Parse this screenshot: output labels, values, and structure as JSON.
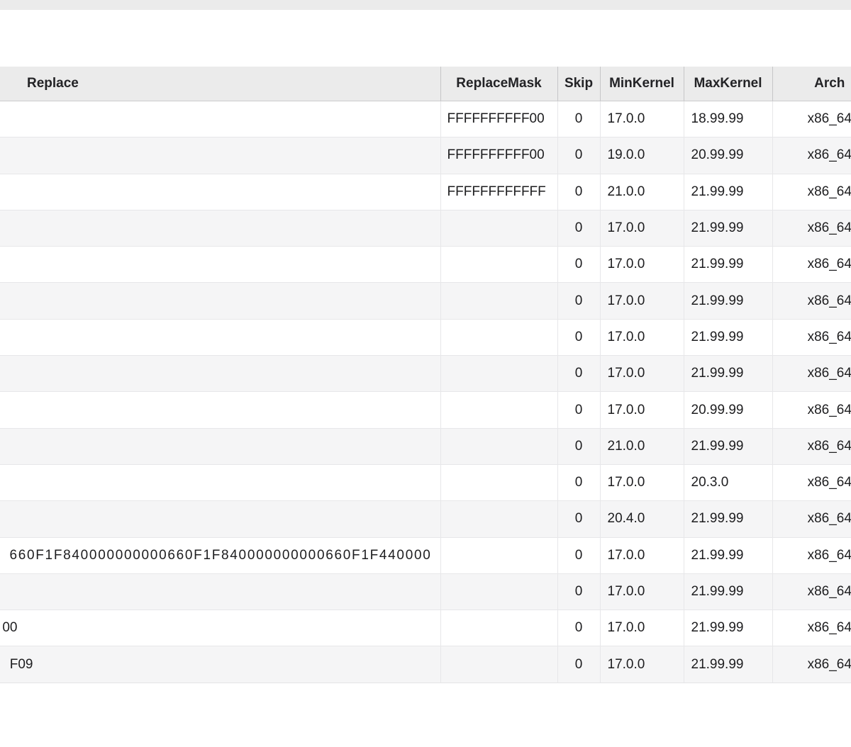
{
  "top_band": {
    "present": true
  },
  "table": {
    "columns": [
      {
        "label": "Replace"
      },
      {
        "label": "ReplaceMask"
      },
      {
        "label": "Skip"
      },
      {
        "label": "MinKernel"
      },
      {
        "label": "MaxKernel"
      },
      {
        "label": "Arch"
      }
    ],
    "rows": [
      {
        "replace": "",
        "replace_mask": "FFFFFFFFFF00",
        "skip": "0",
        "min_kernel": "17.0.0",
        "max_kernel": "18.99.99",
        "arch": "x86_64"
      },
      {
        "replace": "",
        "replace_mask": "FFFFFFFFFF00",
        "skip": "0",
        "min_kernel": "19.0.0",
        "max_kernel": "20.99.99",
        "arch": "x86_64"
      },
      {
        "replace": "",
        "replace_mask": "FFFFFFFFFFFF",
        "skip": "0",
        "min_kernel": "21.0.0",
        "max_kernel": "21.99.99",
        "arch": "x86_64"
      },
      {
        "replace": "",
        "replace_mask": "",
        "skip": "0",
        "min_kernel": "17.0.0",
        "max_kernel": "21.99.99",
        "arch": "x86_64"
      },
      {
        "replace": "",
        "replace_mask": "",
        "skip": "0",
        "min_kernel": "17.0.0",
        "max_kernel": "21.99.99",
        "arch": "x86_64"
      },
      {
        "replace": "",
        "replace_mask": "",
        "skip": "0",
        "min_kernel": "17.0.0",
        "max_kernel": "21.99.99",
        "arch": "x86_64"
      },
      {
        "replace": "",
        "replace_mask": "",
        "skip": "0",
        "min_kernel": "17.0.0",
        "max_kernel": "21.99.99",
        "arch": "x86_64"
      },
      {
        "replace": "",
        "replace_mask": "",
        "skip": "0",
        "min_kernel": "17.0.0",
        "max_kernel": "21.99.99",
        "arch": "x86_64"
      },
      {
        "replace": "",
        "replace_mask": "",
        "skip": "0",
        "min_kernel": "17.0.0",
        "max_kernel": "20.99.99",
        "arch": "x86_64"
      },
      {
        "replace": "",
        "replace_mask": "",
        "skip": "0",
        "min_kernel": "21.0.0",
        "max_kernel": "21.99.99",
        "arch": "x86_64"
      },
      {
        "replace": "",
        "replace_mask": "",
        "skip": "0",
        "min_kernel": "17.0.0",
        "max_kernel": "20.3.0",
        "arch": "x86_64"
      },
      {
        "replace": "",
        "replace_mask": "",
        "skip": "0",
        "min_kernel": "20.4.0",
        "max_kernel": "21.99.99",
        "arch": "x86_64"
      },
      {
        "replace": "660F1F840000000000660F1F840000000000660F1F440000",
        "replace_mask": "",
        "skip": "0",
        "min_kernel": "17.0.0",
        "max_kernel": "21.99.99",
        "arch": "x86_64"
      },
      {
        "replace": "",
        "replace_mask": "",
        "skip": "0",
        "min_kernel": "17.0.0",
        "max_kernel": "21.99.99",
        "arch": "x86_64"
      },
      {
        "replace": "00",
        "replace_mask": "",
        "skip": "0",
        "min_kernel": "17.0.0",
        "max_kernel": "21.99.99",
        "arch": "x86_64"
      },
      {
        "replace": "F09",
        "replace_mask": "",
        "skip": "0",
        "min_kernel": "17.0.0",
        "max_kernel": "21.99.99",
        "arch": "x86_64"
      }
    ]
  },
  "colors": {
    "header_bg": "#ebebeb",
    "row_alt_bg": "#f5f5f6",
    "header_border": "#c6c6c8",
    "body_border": "#e7e7e9",
    "text": "#1d1d1f",
    "top_band_bg": "#ebebeb"
  }
}
